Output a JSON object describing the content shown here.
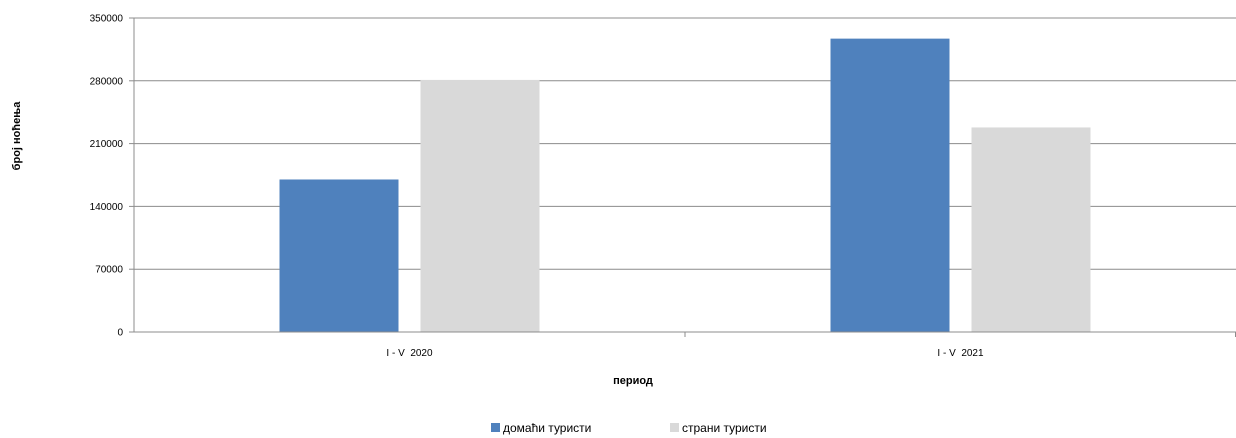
{
  "chart_data": {
    "type": "bar",
    "title": "",
    "xlabel": "период",
    "ylabel": "број ноћења",
    "categories": [
      "I - V  2020",
      "I - V  2021"
    ],
    "series": [
      {
        "name": "домаћи туристи",
        "values": [
          170000,
          327000
        ],
        "color": "#4f81bd"
      },
      {
        "name": "страни туристи",
        "values": [
          281000,
          228000
        ],
        "color": "#d9d9d9"
      }
    ],
    "ylim": [
      0,
      350000
    ],
    "yticks": [
      0,
      70000,
      140000,
      210000,
      280000,
      350000
    ],
    "grid": true,
    "legend_position": "bottom"
  }
}
